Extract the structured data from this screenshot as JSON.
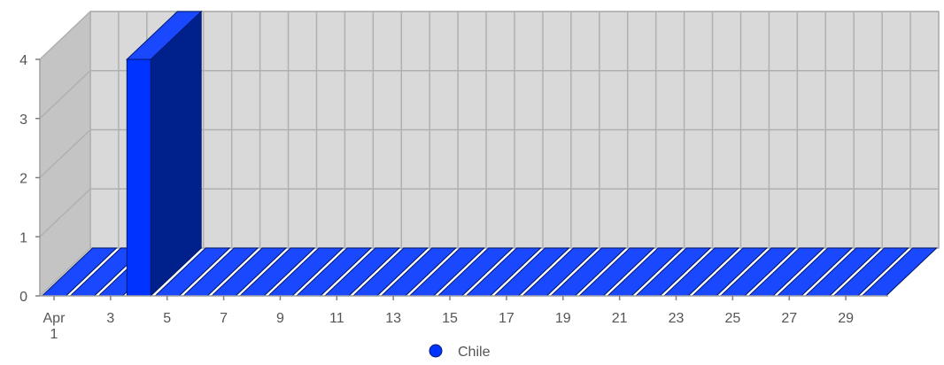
{
  "chart_data": {
    "type": "bar",
    "style": "3d",
    "x": [
      1,
      2,
      3,
      4,
      5,
      6,
      7,
      8,
      9,
      10,
      11,
      12,
      13,
      14,
      15,
      16,
      17,
      18,
      19,
      20,
      21,
      22,
      23,
      24,
      25,
      26,
      27,
      28,
      29,
      30
    ],
    "series": [
      {
        "name": "Chile",
        "color": "#0033ff",
        "values": [
          0,
          0,
          0,
          4,
          0,
          0,
          0,
          0,
          0,
          0,
          0,
          0,
          0,
          0,
          0,
          0,
          0,
          0,
          0,
          0,
          0,
          0,
          0,
          0,
          0,
          0,
          0,
          0,
          0,
          0
        ]
      }
    ],
    "x_ticks": [
      {
        "x": 1,
        "label": "Apr",
        "sublabel": "1"
      },
      {
        "x": 3,
        "label": "3"
      },
      {
        "x": 5,
        "label": "5"
      },
      {
        "x": 7,
        "label": "7"
      },
      {
        "x": 9,
        "label": "9"
      },
      {
        "x": 11,
        "label": "11"
      },
      {
        "x": 13,
        "label": "13"
      },
      {
        "x": 15,
        "label": "15"
      },
      {
        "x": 17,
        "label": "17"
      },
      {
        "x": 19,
        "label": "19"
      },
      {
        "x": 21,
        "label": "21"
      },
      {
        "x": 23,
        "label": "23"
      },
      {
        "x": 25,
        "label": "25"
      },
      {
        "x": 27,
        "label": "27"
      },
      {
        "x": 29,
        "label": "29"
      }
    ],
    "y_ticks": [
      0,
      1,
      2,
      3,
      4
    ],
    "ylim": [
      0,
      4
    ],
    "grid": true,
    "legend_position": "bottom-center",
    "colors": {
      "back_wall": "#d9d9d9",
      "side_wall": "#c4c4c4",
      "grid": "#b0b0b0",
      "bar_front": "#0033ff",
      "bar_top": "#1a48ff",
      "bar_side": "#00208c"
    }
  }
}
